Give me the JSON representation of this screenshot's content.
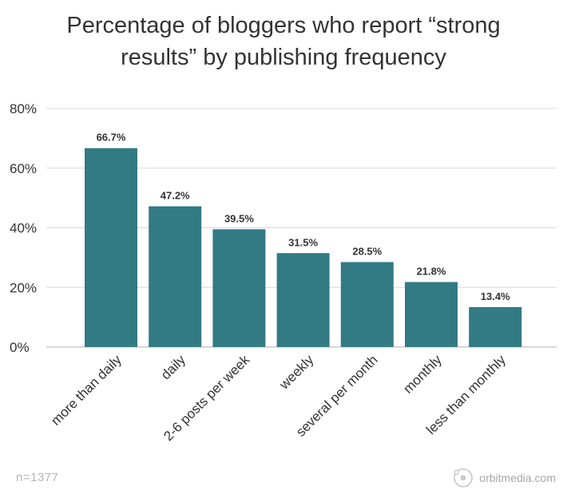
{
  "title_line1": "Percentage of bloggers who report “strong",
  "title_line2": "results” by publishing frequency",
  "sample_note": "n=1377",
  "brand": {
    "text": "orbitmedia.com",
    "icon": "orbit-logo-icon"
  },
  "colors": {
    "bar": "#327b85",
    "grid": "#d9d9d9",
    "axis": "#cccccc",
    "text": "#333333"
  },
  "chart_data": {
    "type": "bar",
    "title": "Percentage of bloggers who report “strong results” by publishing frequency",
    "xlabel": "",
    "ylabel": "",
    "categories": [
      "more than daily",
      "daily",
      "2-6 posts per week",
      "weekly",
      "several per month",
      "monthly",
      "less than monthly"
    ],
    "values": [
      66.7,
      47.2,
      39.5,
      31.5,
      28.5,
      21.8,
      13.4
    ],
    "value_labels": [
      "66.7%",
      "47.2%",
      "39.5%",
      "31.5%",
      "28.5%",
      "21.8%",
      "13.4%"
    ],
    "ylim": [
      0,
      80
    ],
    "yticks": [
      0,
      20,
      40,
      60,
      80
    ],
    "ytick_labels": [
      "0%",
      "20%",
      "40%",
      "60%",
      "80%"
    ],
    "grid": true,
    "legend": "none"
  }
}
